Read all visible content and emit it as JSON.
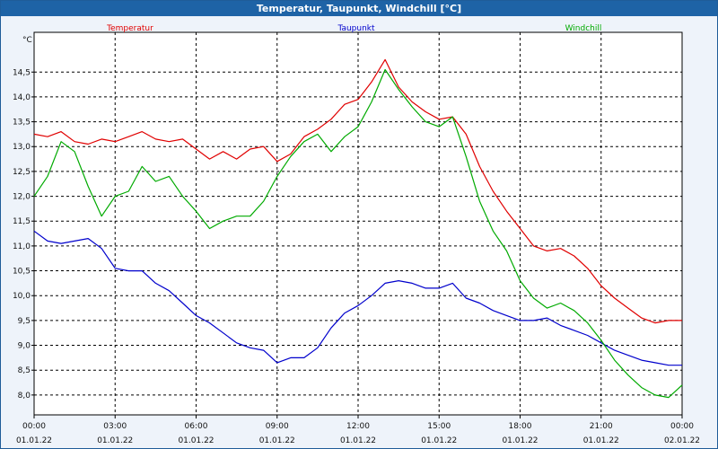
{
  "window": {
    "title": "Temperatur, Taupunkt, Windchill [°C]"
  },
  "chart_data": {
    "type": "line",
    "title": "Temperatur, Taupunkt, Windchill [°C]",
    "ylabel": "°C",
    "ylim": [
      7.6,
      15.3
    ],
    "yticks": [
      "8,0",
      "8,5",
      "9,0",
      "9,5",
      "10,0",
      "10,5",
      "11,0",
      "11,5",
      "12,0",
      "12,5",
      "13,0",
      "13,5",
      "14,0",
      "14,5"
    ],
    "xticks": [
      {
        "time": "00:00",
        "date": "01.01.22"
      },
      {
        "time": "03:00",
        "date": "01.01.22"
      },
      {
        "time": "06:00",
        "date": "01.01.22"
      },
      {
        "time": "09:00",
        "date": "01.01.22"
      },
      {
        "time": "12:00",
        "date": "01.01.22"
      },
      {
        "time": "15:00",
        "date": "01.01.22"
      },
      {
        "time": "18:00",
        "date": "01.01.22"
      },
      {
        "time": "21:00",
        "date": "01.01.22"
      },
      {
        "time": "00:00",
        "date": "02.01.22"
      }
    ],
    "x_hours": [
      0,
      0.5,
      1,
      1.5,
      2,
      2.5,
      3,
      3.5,
      4,
      4.5,
      5,
      5.5,
      6,
      6.5,
      7,
      7.5,
      8,
      8.5,
      9,
      9.5,
      10,
      10.5,
      11,
      11.5,
      12,
      12.5,
      13,
      13.5,
      14,
      14.5,
      15,
      15.5,
      16,
      16.5,
      17,
      17.5,
      18,
      18.5,
      19,
      19.5,
      20,
      20.5,
      21,
      21.5,
      22,
      22.5,
      23,
      23.5,
      24
    ],
    "grid": true,
    "series": [
      {
        "name": "Temperatur",
        "color": "#e00000",
        "values": [
          13.25,
          13.2,
          13.3,
          13.1,
          13.05,
          13.15,
          13.1,
          13.2,
          13.3,
          13.15,
          13.1,
          13.15,
          12.95,
          12.75,
          12.9,
          12.75,
          12.95,
          13.0,
          12.7,
          12.85,
          13.2,
          13.35,
          13.55,
          13.85,
          13.95,
          14.3,
          14.75,
          14.2,
          13.9,
          13.7,
          13.55,
          13.6,
          13.25,
          12.6,
          12.1,
          11.7,
          11.35,
          11.0,
          10.9,
          10.95,
          10.8,
          10.55,
          10.2,
          9.95,
          9.75,
          9.55,
          9.45,
          9.5,
          9.5
        ]
      },
      {
        "name": "Taupunkt",
        "color": "#0000cc",
        "values": [
          11.3,
          11.1,
          11.05,
          11.1,
          11.15,
          10.95,
          10.55,
          10.5,
          10.5,
          10.25,
          10.1,
          9.85,
          9.6,
          9.45,
          9.25,
          9.05,
          8.95,
          8.9,
          8.65,
          8.75,
          8.75,
          8.95,
          9.35,
          9.65,
          9.8,
          10.0,
          10.25,
          10.3,
          10.25,
          10.15,
          10.15,
          10.25,
          9.95,
          9.85,
          9.7,
          9.6,
          9.5,
          9.5,
          9.55,
          9.4,
          9.3,
          9.2,
          9.05,
          8.9,
          8.8,
          8.7,
          8.65,
          8.6,
          8.6
        ]
      },
      {
        "name": "Windchill",
        "color": "#00aa00",
        "values": [
          12.0,
          12.4,
          13.1,
          12.9,
          12.2,
          11.6,
          12.0,
          12.1,
          12.6,
          12.3,
          12.4,
          12.0,
          11.7,
          11.35,
          11.5,
          11.6,
          11.6,
          11.9,
          12.4,
          12.8,
          13.1,
          13.25,
          12.9,
          13.2,
          13.4,
          13.9,
          14.55,
          14.15,
          13.8,
          13.5,
          13.4,
          13.6,
          12.8,
          11.9,
          11.3,
          10.9,
          10.3,
          9.95,
          9.75,
          9.85,
          9.7,
          9.45,
          9.1,
          8.7,
          8.4,
          8.15,
          8.0,
          7.95,
          8.2
        ]
      }
    ]
  }
}
